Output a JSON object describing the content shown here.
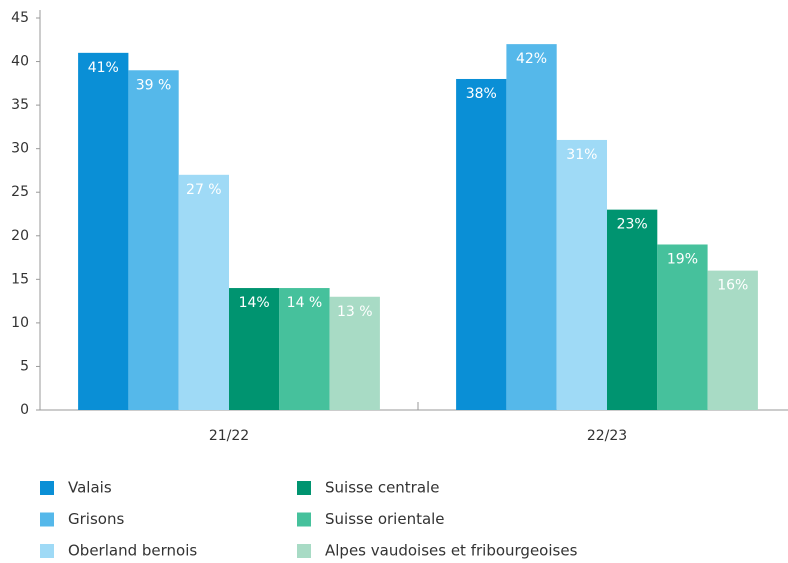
{
  "chart_data": {
    "type": "bar",
    "categories": [
      "21/22",
      "22/23"
    ],
    "series": [
      {
        "name": "Valais",
        "color": "#0a8fd6",
        "values": [
          41,
          38
        ],
        "value_labels": [
          "41%",
          "38%"
        ]
      },
      {
        "name": "Grisons",
        "color": "#55b8ea",
        "values": [
          39,
          42
        ],
        "value_labels": [
          "39 %",
          "42%"
        ]
      },
      {
        "name": "Oberland bernois",
        "color": "#9fdaf6",
        "values": [
          27,
          31
        ],
        "value_labels": [
          "27 %",
          "31%"
        ]
      },
      {
        "name": "Suisse centrale",
        "color": "#009470",
        "values": [
          14,
          23
        ],
        "value_labels": [
          "14%",
          "23%"
        ]
      },
      {
        "name": "Suisse orientale",
        "color": "#46c19c",
        "values": [
          14,
          19
        ],
        "value_labels": [
          "14 %",
          "19%"
        ]
      },
      {
        "name": "Alpes vaudoises et fribourgeoises",
        "color": "#a8dbc5",
        "values": [
          13,
          16
        ],
        "value_labels": [
          "13 %",
          "16%"
        ]
      }
    ],
    "ylim": [
      0,
      45
    ],
    "yticks": [
      0,
      5,
      10,
      15,
      20,
      25,
      30,
      35,
      40,
      45
    ],
    "grid": false
  }
}
